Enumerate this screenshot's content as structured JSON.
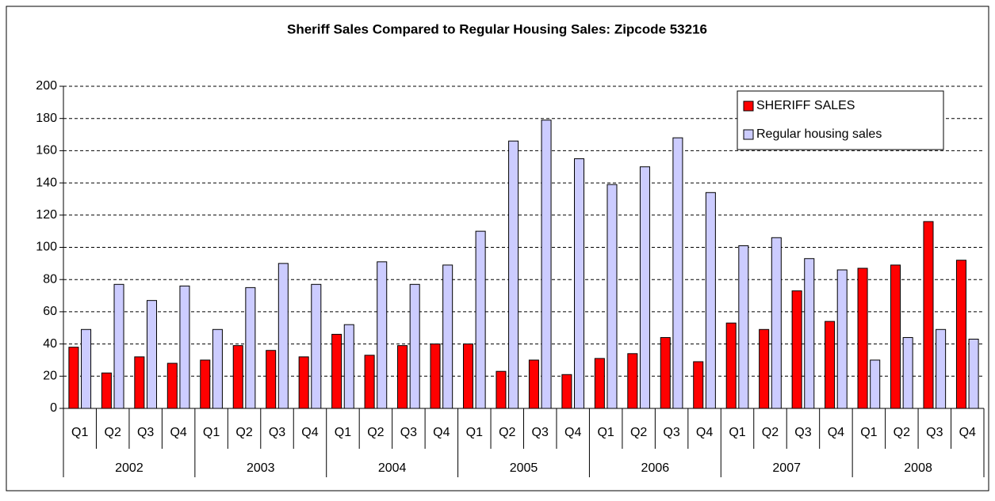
{
  "chart_data": {
    "type": "bar",
    "title": "Sheriff Sales Compared to Regular Housing Sales: Zipcode 53216",
    "categories": [
      "Q1",
      "Q2",
      "Q3",
      "Q4",
      "Q1",
      "Q2",
      "Q3",
      "Q4",
      "Q1",
      "Q2",
      "Q3",
      "Q4",
      "Q1",
      "Q2",
      "Q3",
      "Q4",
      "Q1",
      "Q2",
      "Q3",
      "Q4",
      "Q1",
      "Q2",
      "Q3",
      "Q4",
      "Q1",
      "Q2",
      "Q3",
      "Q4"
    ],
    "groups": [
      "2002",
      "2003",
      "2004",
      "2005",
      "2006",
      "2007",
      "2008"
    ],
    "series": [
      {
        "name": "SHERIFF SALES",
        "color": "#ff0000",
        "values": [
          38,
          22,
          32,
          28,
          30,
          39,
          36,
          32,
          46,
          33,
          39,
          40,
          40,
          23,
          30,
          21,
          31,
          34,
          44,
          29,
          53,
          49,
          73,
          54,
          87,
          89,
          116,
          92
        ]
      },
      {
        "name": "Regular housing sales",
        "color": "#ccccff",
        "values": [
          49,
          77,
          67,
          76,
          49,
          75,
          90,
          77,
          52,
          91,
          77,
          89,
          110,
          166,
          179,
          155,
          139,
          150,
          168,
          134,
          101,
          106,
          93,
          86,
          30,
          44,
          49,
          43
        ]
      }
    ],
    "ylim": [
      0,
      200
    ],
    "yticks": [
      0,
      20,
      40,
      60,
      80,
      100,
      120,
      140,
      160,
      180,
      200
    ],
    "grid": true,
    "legend": "top-right"
  }
}
